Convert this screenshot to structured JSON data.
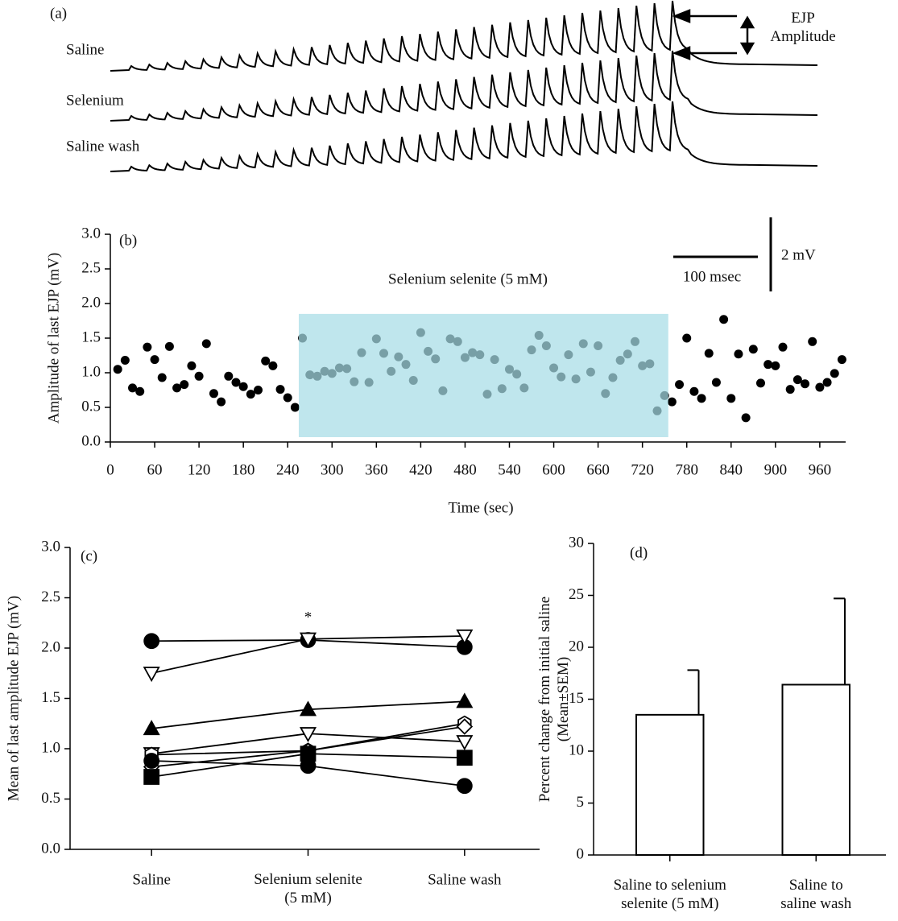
{
  "chart_data": [
    {
      "type": "traces",
      "panel_label": "(a)",
      "traces": [
        "Saline",
        "Selenium",
        "Saline wash"
      ],
      "annotation": "EJP\nAmplitude",
      "scale_x_label": "100 msec",
      "scale_y_label": "2 mV"
    },
    {
      "type": "scatter",
      "panel_label": "(b)",
      "x_label": "Time (sec)",
      "y_label": "Amplitude of last EJP (mV)",
      "annotation": "Selenium selenite (5 mM)",
      "color": "#000000",
      "x": [
        10,
        20,
        30,
        40,
        50,
        60,
        70,
        80,
        90,
        100,
        110,
        120,
        130,
        140,
        150,
        160,
        170,
        180,
        190,
        200,
        210,
        220,
        230,
        240,
        250,
        260,
        270,
        280,
        290,
        300,
        310,
        320,
        330,
        340,
        350,
        360,
        370,
        380,
        390,
        400,
        410,
        420,
        430,
        440,
        450,
        460,
        470,
        480,
        490,
        500,
        510,
        520,
        530,
        540,
        550,
        560,
        570,
        580,
        590,
        600,
        610,
        620,
        630,
        640,
        650,
        660,
        670,
        680,
        690,
        700,
        710,
        720,
        730,
        740,
        750,
        760,
        770,
        780,
        790,
        800,
        810,
        820,
        830,
        840,
        850,
        860,
        870,
        880,
        890,
        900,
        910,
        920,
        930,
        940,
        950,
        960,
        970,
        980,
        990
      ],
      "values": [
        1.05,
        1.18,
        0.78,
        0.73,
        1.37,
        1.19,
        0.93,
        1.38,
        0.78,
        0.83,
        1.1,
        0.95,
        1.42,
        0.7,
        0.58,
        0.95,
        0.86,
        0.8,
        0.69,
        0.75,
        1.17,
        1.1,
        0.76,
        0.64,
        0.5,
        1.5,
        0.97,
        0.95,
        1.02,
        0.99,
        1.07,
        1.06,
        0.87,
        1.29,
        0.86,
        1.49,
        1.28,
        1.02,
        1.23,
        1.12,
        0.89,
        1.58,
        1.31,
        1.2,
        0.74,
        1.49,
        1.45,
        1.22,
        1.29,
        1.26,
        0.69,
        1.19,
        0.77,
        1.05,
        0.98,
        0.78,
        1.33,
        1.54,
        1.39,
        1.07,
        0.94,
        1.26,
        0.91,
        1.42,
        1.01,
        1.39,
        0.7,
        0.93,
        1.18,
        1.27,
        1.45,
        1.1,
        1.13,
        0.45,
        0.67,
        0.58,
        0.83,
        1.5,
        0.73,
        0.63,
        1.28,
        0.86,
        1.77,
        0.63,
        1.27,
        0.35,
        1.34,
        0.85,
        1.12,
        1.1,
        1.37,
        0.76,
        0.9,
        0.84,
        1.45,
        0.79,
        0.86,
        0.99,
        1.19
      ],
      "highlight": {
        "x0": 255,
        "x1": 755,
        "y1": 1.85,
        "color": "#a6dce6"
      },
      "xlim": [
        0,
        995
      ],
      "xticks": [
        0,
        60,
        120,
        180,
        240,
        300,
        360,
        420,
        480,
        540,
        600,
        660,
        720,
        780,
        840,
        900,
        960
      ],
      "ylim": [
        0,
        3
      ],
      "yticks": [
        {
          "value": 0,
          "label": "0.0"
        },
        0.5,
        {
          "value": 1,
          "label": "1.0"
        },
        1.5,
        {
          "value": 2,
          "label": "2.0"
        },
        2.5,
        {
          "value": 3,
          "label": "3.0"
        }
      ]
    },
    {
      "type": "line",
      "panel_label": "(c)",
      "y_label": "Mean of last amplitude EJP (mV)",
      "annotation": "*",
      "categories": [
        "Saline",
        "Selenium selenite\n(5 mM)",
        "Saline wash"
      ],
      "series": [
        {
          "marker": "circle",
          "filled": true,
          "color": "#000000",
          "values": [
            2.07,
            2.08,
            2.01
          ]
        },
        {
          "marker": "triangle-down",
          "filled": false,
          "color": "#000000",
          "values": [
            1.75,
            2.09,
            2.12
          ]
        },
        {
          "marker": "triangle-up",
          "filled": true,
          "color": "#000000",
          "values": [
            1.2,
            1.39,
            1.47
          ]
        },
        {
          "marker": "triangle-down",
          "filled": false,
          "color": "#000000",
          "values": [
            0.95,
            1.15,
            1.07
          ]
        },
        {
          "marker": "hexagon",
          "filled": false,
          "color": "#000000",
          "values": [
            0.94,
            0.98,
            1.25
          ]
        },
        {
          "marker": "diamond",
          "filled": false,
          "color": "#000000",
          "values": [
            0.82,
            0.98,
            1.22
          ]
        },
        {
          "marker": "square",
          "filled": true,
          "color": "#000000",
          "values": [
            0.72,
            0.95,
            0.91
          ]
        },
        {
          "marker": "circle",
          "filled": true,
          "color": "#000000",
          "values": [
            0.88,
            0.83,
            0.63
          ]
        }
      ],
      "ylim": [
        0,
        3
      ],
      "yticks": [
        {
          "value": 0,
          "label": "0.0"
        },
        0.5,
        {
          "value": 1,
          "label": "1.0"
        },
        1.5,
        {
          "value": 2,
          "label": "2.0"
        },
        2.5,
        {
          "value": 3,
          "label": "3.0"
        }
      ]
    },
    {
      "type": "bar",
      "panel_label": "(d)",
      "y_label": "Percent change from initial saline\n(Mean±SEM)",
      "categories": [
        "Saline to selenium\nselenite (5 mM)",
        "Saline to\nsaline wash"
      ],
      "values": [
        13.5,
        16.4
      ],
      "errors": [
        4.3,
        8.3
      ],
      "color": "#ffffff",
      "ylim": [
        0,
        30
      ],
      "yticks": [
        0,
        5,
        10,
        15,
        20,
        25,
        30
      ]
    }
  ]
}
